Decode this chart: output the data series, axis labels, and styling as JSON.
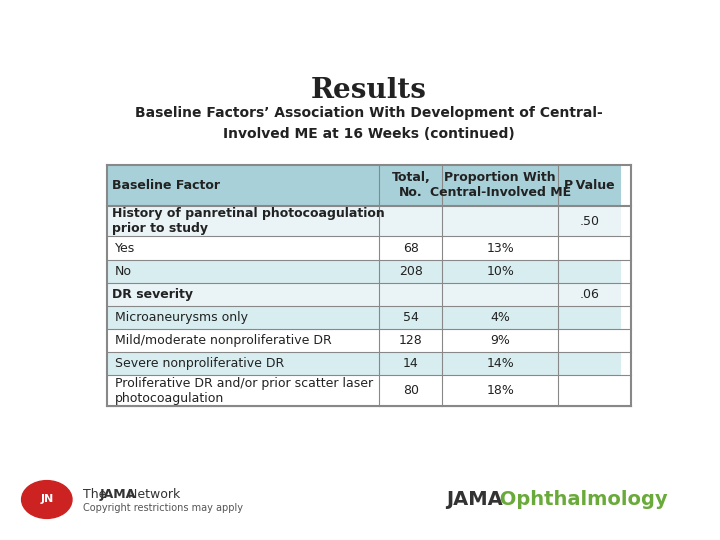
{
  "title": "Results",
  "subtitle_line1": "Baseline Factors’ Association With Development of Central-",
  "subtitle_line2": "Involved ME at 16 Weeks (continued)",
  "header": [
    "Baseline Factor",
    "Total,\nNo.",
    "Proportion With\nCentral-Involved ME",
    "P Value"
  ],
  "rows": [
    {
      "label": "History of panretinal photocoagulation\nprior to study",
      "indent": 0,
      "bold": true,
      "total": "",
      "proportion": "",
      "pvalue": ".50"
    },
    {
      "label": "Yes",
      "indent": 1,
      "bold": false,
      "total": "68",
      "proportion": "13%",
      "pvalue": ""
    },
    {
      "label": "No",
      "indent": 1,
      "bold": false,
      "total": "208",
      "proportion": "10%",
      "pvalue": ""
    },
    {
      "label": "DR severity",
      "indent": 0,
      "bold": true,
      "total": "",
      "proportion": "",
      "pvalue": ".06"
    },
    {
      "label": "Microaneurysms only",
      "indent": 1,
      "bold": false,
      "total": "54",
      "proportion": "4%",
      "pvalue": ""
    },
    {
      "label": "Mild/moderate nonproliferative DR",
      "indent": 1,
      "bold": false,
      "total": "128",
      "proportion": "9%",
      "pvalue": ""
    },
    {
      "label": "Severe nonproliferative DR",
      "indent": 1,
      "bold": false,
      "total": "14",
      "proportion": "14%",
      "pvalue": ""
    },
    {
      "label": "Proliferative DR and/or prior scatter laser\nphotocoagulation",
      "indent": 1,
      "bold": false,
      "total": "80",
      "proportion": "18%",
      "pvalue": ""
    }
  ],
  "header_bg": "#a8d0d8",
  "row_bg_odd": "#d8edf0",
  "row_bg_even": "#ffffff",
  "bold_row_bg": "#eaf4f7",
  "border_color": "#888888",
  "text_color": "#222222",
  "bg_color": "#ffffff",
  "jama_orange": "#e06020",
  "jama_green": "#6aaa3a",
  "footer_left": "The JAMA Network",
  "footer_right_jama": "JAMA",
  "footer_right_ophth": " Ophthalmology",
  "copyright": "Copyright restrictions may apply"
}
